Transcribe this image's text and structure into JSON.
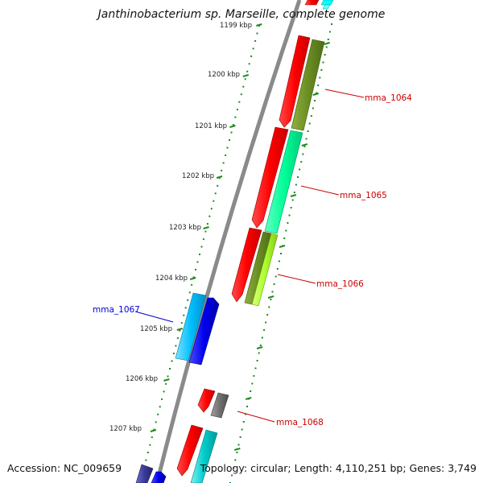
{
  "title": "Janthinobacterium sp. Marseille, complete genome",
  "footer": {
    "accession_label": "Accession: NC_009659",
    "topology_label": "Topology: circular; Length: 4,110,251 bp; Genes: 3,749"
  },
  "colors": {
    "backbone": "#8a8a8a",
    "tick": "#1e8a1e",
    "label_fwd": "#cc0000",
    "label_rev": "#0000cc"
  },
  "scale_labels": [
    "1199 kbp",
    "1200 kbp",
    "1201 kbp",
    "1202 kbp",
    "1203 kbp",
    "1204 kbp",
    "1205 kbp",
    "1206 kbp",
    "1207 kbp"
  ],
  "gene_labels": [
    {
      "text": "mma_1064",
      "strand": "forward"
    },
    {
      "text": "mma_1065",
      "strand": "forward"
    },
    {
      "text": "mma_1066",
      "strand": "forward"
    },
    {
      "text": "mma_1067",
      "strand": "reverse"
    },
    {
      "text": "mma_1068",
      "strand": "forward"
    }
  ],
  "feature_colors": [
    "#ff0000",
    "#6b8e23",
    "#00ff99",
    "#adff2f",
    "#00bfff",
    "#0000ee",
    "#707070",
    "#00cccc",
    "#3a3a9a"
  ]
}
